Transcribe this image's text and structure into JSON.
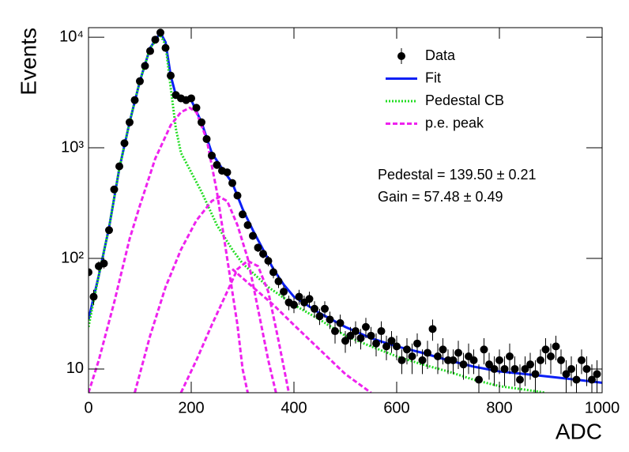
{
  "chart_data": {
    "type": "scatter",
    "x_label": "ADC",
    "y_label": "Events",
    "log_y": true,
    "xlim": [
      0,
      1000
    ],
    "ylim": [
      6.1,
      12200
    ],
    "xticks": [
      0,
      200,
      400,
      600,
      800,
      1000
    ],
    "yticks": [
      10,
      {
        "value": 100,
        "label": "10²"
      },
      {
        "value": 1000,
        "label": "10³"
      },
      {
        "value": 10000,
        "label": "10⁴"
      }
    ],
    "legend": "upper right",
    "annotations": [
      "Pedestal = 139.50 ± 0.21",
      "Gain = 57.48 ± 0.49"
    ],
    "series": [
      {
        "name": "Data",
        "color": "#000000",
        "style": "points",
        "x": [
          0,
          10,
          20,
          30,
          40,
          50,
          60,
          70,
          80,
          90,
          100,
          110,
          120,
          130,
          140,
          150,
          160,
          170,
          180,
          190,
          200,
          210,
          220,
          230,
          240,
          250,
          260,
          270,
          280,
          290,
          300,
          310,
          320,
          330,
          340,
          350,
          360,
          370,
          380,
          390,
          400,
          410,
          420,
          430,
          440,
          450,
          460,
          470,
          480,
          490,
          500,
          510,
          520,
          530,
          540,
          550,
          560,
          570,
          580,
          590,
          600,
          610,
          620,
          630,
          640,
          650,
          660,
          670,
          680,
          690,
          700,
          710,
          720,
          730,
          740,
          750,
          760,
          770,
          780,
          790,
          800,
          810,
          820,
          830,
          840,
          850,
          860,
          870,
          880,
          890,
          900,
          910,
          920,
          930,
          940,
          950,
          960,
          970,
          980,
          990
        ],
        "values": [
          75,
          45,
          85,
          90,
          180,
          420,
          680,
          1100,
          1700,
          2700,
          4000,
          5500,
          7500,
          9500,
          11000,
          8000,
          4500,
          3000,
          2800,
          2700,
          2800,
          2300,
          1700,
          1200,
          850,
          700,
          620,
          600,
          480,
          370,
          250,
          200,
          160,
          125,
          110,
          95,
          75,
          62,
          50,
          40,
          38,
          45,
          40,
          43,
          35,
          30,
          35,
          28,
          22,
          26,
          18,
          20,
          22,
          19,
          24,
          20,
          17,
          22,
          16,
          18,
          16,
          12,
          15,
          13,
          17,
          12,
          14,
          23,
          13,
          15,
          12,
          12,
          14,
          11,
          13,
          12,
          8,
          15,
          11,
          10,
          12,
          10,
          13,
          10,
          8,
          10,
          11,
          9,
          12,
          15,
          13,
          16,
          12,
          9,
          10,
          8,
          12,
          10,
          8,
          9
        ],
        "errors": [
          9,
          7,
          9,
          9,
          13,
          20,
          26,
          33,
          41,
          52,
          63,
          74,
          87,
          97,
          105,
          89,
          67,
          55,
          53,
          52,
          53,
          48,
          41,
          35,
          29,
          26,
          25,
          24,
          22,
          19,
          16,
          14,
          13,
          11,
          10,
          10,
          9,
          8,
          7,
          6,
          6,
          7,
          6,
          7,
          6,
          5,
          6,
          5,
          5,
          5,
          4,
          4,
          5,
          4,
          5,
          4,
          4,
          5,
          4,
          4,
          4,
          3,
          4,
          4,
          4,
          3,
          4,
          5,
          4,
          4,
          3,
          3,
          4,
          3,
          4,
          3,
          3,
          4,
          3,
          3,
          3,
          3,
          4,
          3,
          3,
          3,
          3,
          3,
          3,
          4,
          4,
          4,
          3,
          3,
          3,
          3,
          3,
          3,
          3,
          3
        ]
      },
      {
        "name": "Fit",
        "color": "#0a1ff5",
        "style": "solid",
        "x": [
          0,
          20,
          40,
          60,
          80,
          100,
          120,
          140,
          150,
          160,
          170,
          180,
          200,
          220,
          240,
          260,
          280,
          300,
          320,
          340,
          360,
          380,
          400,
          450,
          500,
          550,
          600,
          650,
          700,
          750,
          800,
          850,
          900,
          950,
          1000
        ],
        "values": [
          28,
          70,
          190,
          650,
          1700,
          4000,
          8000,
          11000,
          9000,
          4500,
          3000,
          2900,
          2700,
          1700,
          900,
          650,
          480,
          280,
          180,
          120,
          80,
          58,
          45,
          32,
          24,
          19,
          16,
          14,
          12,
          10.5,
          9.5,
          9,
          8.5,
          8,
          7.5
        ]
      },
      {
        "name": "Pedestal CB",
        "color": "#22dd22",
        "style": "dotted",
        "x": [
          0,
          20,
          40,
          60,
          80,
          100,
          120,
          140,
          150,
          160,
          170,
          180,
          200,
          220,
          250,
          280,
          300,
          350,
          400,
          450,
          500,
          550,
          600,
          650,
          700,
          750,
          800,
          850,
          890
        ],
        "values": [
          24,
          70,
          190,
          650,
          1700,
          4000,
          8000,
          10500,
          8500,
          3500,
          1500,
          900,
          600,
          400,
          200,
          120,
          90,
          55,
          38,
          28,
          20,
          16,
          13,
          11,
          9.5,
          8,
          7,
          6.5,
          6.1
        ]
      },
      {
        "name": "p.e. peak",
        "color": "#ee22ee",
        "style": "dashed",
        "x": [
          0,
          20,
          50,
          80,
          100,
          130,
          160,
          180,
          197,
          210,
          230,
          250,
          270,
          290,
          300,
          310
        ],
        "values": [
          6.1,
          12,
          40,
          150,
          300,
          800,
          1600,
          2100,
          2300,
          2100,
          1200,
          400,
          100,
          25,
          10,
          6.1
        ]
      },
      {
        "color": "#ee22ee",
        "style": "dashed",
        "x": [
          90,
          120,
          150,
          180,
          210,
          240,
          255,
          270,
          290,
          310,
          330,
          350,
          365
        ],
        "values": [
          6.1,
          20,
          55,
          120,
          220,
          330,
          360,
          330,
          200,
          100,
          35,
          12,
          6.1
        ]
      },
      {
        "color": "#ee22ee",
        "style": "dashed",
        "x": [
          180,
          210,
          240,
          270,
          290,
          310,
          330,
          350,
          370,
          390
        ],
        "values": [
          6.1,
          12,
          25,
          50,
          80,
          95,
          85,
          50,
          18,
          6.1
        ]
      },
      {
        "color": "#ee22ee",
        "style": "dashed",
        "x": [
          280,
          320,
          360,
          400,
          450,
          500,
          550
        ],
        "values": [
          80,
          55,
          38,
          25,
          15,
          9,
          6.1
        ]
      }
    ]
  }
}
